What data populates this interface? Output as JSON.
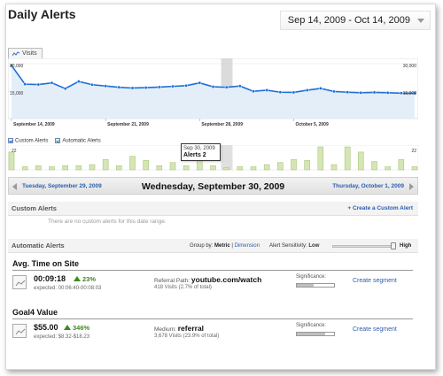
{
  "header": {
    "title": "Daily Alerts",
    "date_range": "Sep 14, 2009 - Oct 14, 2009"
  },
  "visits_tab": {
    "label": "Visits",
    "icon": "line-chart-icon"
  },
  "chart_data": {
    "type": "line",
    "series": [
      {
        "name": "Visits",
        "values": [
          29000,
          18800,
          18600,
          19500,
          16400,
          20300,
          18500,
          17800,
          17100,
          16700,
          16900,
          17200,
          17600,
          18000,
          19500,
          17400,
          17100,
          17800,
          14900,
          15500,
          14400,
          14300,
          15500,
          16500,
          14800,
          14400,
          14100,
          14300,
          14100,
          13900,
          13900
        ]
      }
    ],
    "ylim": [
      0,
      30000
    ],
    "y_ticks": [
      "30,000",
      "15,000"
    ],
    "x_labels": [
      "September 14, 2009",
      "September 21, 2009",
      "September 28, 2009",
      "October 5, 2009"
    ],
    "highlight_index": 16,
    "colors": {
      "line": "#1d6fd6",
      "area": "#e4eef9",
      "highlight": "#cccccc"
    }
  },
  "legend": {
    "custom_label": "Custom Alerts",
    "auto_label": "Automatic Alerts"
  },
  "alert_bars": {
    "max_label": "22",
    "values": [
      17,
      3,
      4,
      3,
      4,
      4,
      5,
      10,
      4,
      13,
      9,
      4,
      7,
      4,
      10,
      4,
      2,
      3,
      3,
      5,
      7,
      10,
      9,
      22,
      5,
      22,
      17,
      8,
      3,
      10,
      3
    ],
    "color": "#d5e6b4"
  },
  "tooltip": {
    "date": "Sep 30, 2009",
    "value": "Alerts 2"
  },
  "nav": {
    "prev": "Tuesday, September 29, 2009",
    "current": "Wednesday, September 30, 2009",
    "next": "Thursday, October 1, 2009"
  },
  "custom_alerts": {
    "heading": "Custom Alerts",
    "create_link": "+ Create a Custom Alert",
    "empty_note": "There are no custom alerts for this date range."
  },
  "automatic_alerts": {
    "heading": "Automatic Alerts",
    "group_by_label": "Group by:",
    "group_metric": "Metric",
    "group_sep": " | ",
    "group_dimension": "Dimension",
    "sensitivity_label": "Alert Sensitivity:",
    "sensitivity_low": "Low",
    "sensitivity_high": "High",
    "sensitivity_level": 0.92
  },
  "metrics": [
    {
      "title": "Avg. Time on Site",
      "value": "00:09:18",
      "change": "23%",
      "expected": "expected: 00:06:40-00:08:03",
      "dimension_label": "Referral Path:",
      "dimension_value": "youtube.com/watch",
      "visits": "418 Visits (2.7% of total)",
      "significance_label": "Significance:",
      "significance": 0.45,
      "segment_link": "Create segment"
    },
    {
      "title": "Goal4 Value",
      "value": "$55.00",
      "change": "346%",
      "expected": "expected: $8.32-$18.23",
      "dimension_label": "Medium:",
      "dimension_value": "referral",
      "visits": "3,678 Visits (23.9% of total)",
      "significance_label": "Significance:",
      "significance": 0.75,
      "segment_link": "Create segment"
    }
  ]
}
